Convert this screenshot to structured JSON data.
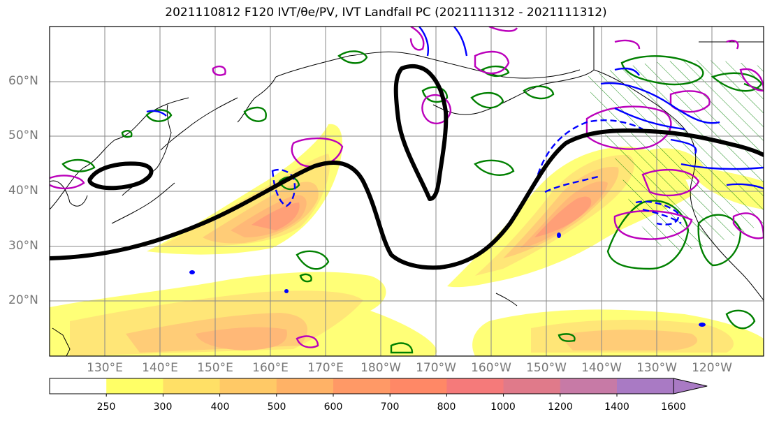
{
  "title": "2021110812 F120 IVT/θe/PV, IVT Landfall PC (2021111312 - 2021111312)",
  "lat_labels": [
    "60°N",
    "50°N",
    "40°N",
    "30°N",
    "20°N"
  ],
  "lon_labels": [
    "130°E",
    "140°E",
    "150°E",
    "160°E",
    "170°E",
    "180°W",
    "170°W",
    "160°W",
    "150°W",
    "140°W",
    "130°W",
    "120°W"
  ],
  "colorbar": {
    "ticks": [
      "250",
      "300",
      "400",
      "500",
      "600",
      "700",
      "800",
      "1000",
      "1200",
      "1400",
      "1600"
    ],
    "colors": [
      "#ffffff",
      "#ffff66",
      "#ffe066",
      "#ffc966",
      "#ffb266",
      "#ff9966",
      "#ff8866",
      "#f57a7a",
      "#e07a8a",
      "#c77aa6",
      "#a97ac4"
    ],
    "extend": "max"
  },
  "colors": {
    "ivt_contours": "#ffcc55",
    "pc_contour": "#000000",
    "theta_e": "#008000",
    "pv_solid": "#0000ff",
    "pv_dashed": "#0000ff",
    "magenta": "#bb00bb",
    "grid": "#888888",
    "land": "#000000"
  }
}
